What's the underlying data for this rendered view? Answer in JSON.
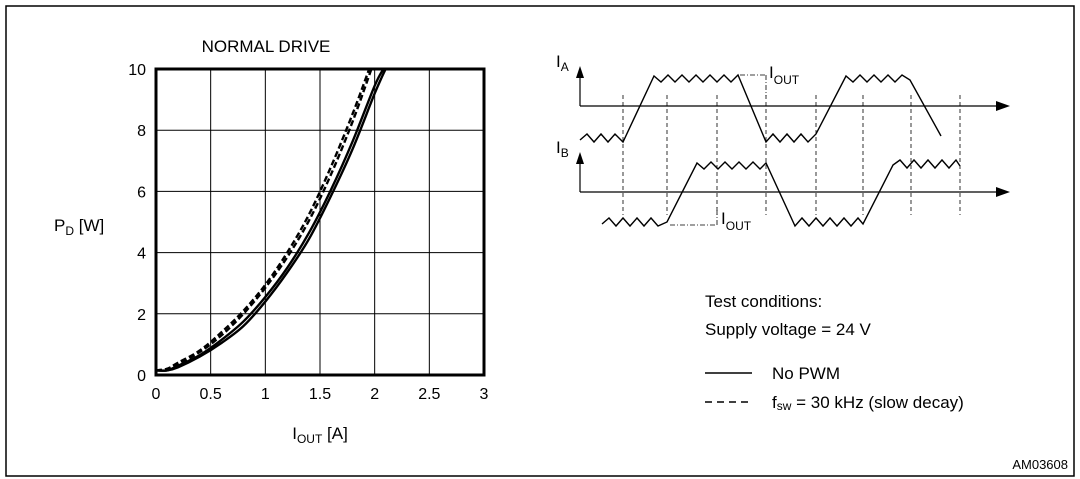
{
  "chart_data": {
    "type": "line",
    "title": "NORMAL DRIVE",
    "xlabel": {
      "main": "I",
      "sub": "OUT",
      "unit": " [A]"
    },
    "ylabel": {
      "main": "P",
      "sub": "D",
      "unit": " [W]"
    },
    "xlim": [
      0,
      3
    ],
    "ylim": [
      0,
      10
    ],
    "x_ticks": [
      "0",
      "0.5",
      "1",
      "1.5",
      "2",
      "2.5",
      "3"
    ],
    "y_ticks": [
      "0",
      "2",
      "4",
      "6",
      "8",
      "10"
    ],
    "grid": true,
    "series": [
      {
        "style": "solid",
        "points": [
          [
            0,
            0.15
          ],
          [
            0.1,
            0.15
          ],
          [
            0.2,
            0.25
          ],
          [
            0.4,
            0.6
          ],
          [
            0.6,
            1.05
          ],
          [
            0.8,
            1.6
          ],
          [
            1.0,
            2.4
          ],
          [
            1.2,
            3.35
          ],
          [
            1.4,
            4.45
          ],
          [
            1.6,
            5.85
          ],
          [
            1.8,
            7.4
          ],
          [
            2.0,
            9.2
          ],
          [
            2.1,
            10
          ]
        ]
      },
      {
        "style": "solid",
        "points": [
          [
            0,
            0.15
          ],
          [
            0.1,
            0.15
          ],
          [
            0.2,
            0.3
          ],
          [
            0.4,
            0.65
          ],
          [
            0.6,
            1.15
          ],
          [
            0.8,
            1.75
          ],
          [
            1.0,
            2.55
          ],
          [
            1.2,
            3.5
          ],
          [
            1.4,
            4.65
          ],
          [
            1.6,
            6.05
          ],
          [
            1.8,
            7.65
          ],
          [
            2.0,
            9.45
          ],
          [
            2.08,
            10
          ]
        ]
      },
      {
        "style": "dashed",
        "points": [
          [
            0,
            0.15
          ],
          [
            0.1,
            0.2
          ],
          [
            0.2,
            0.35
          ],
          [
            0.4,
            0.75
          ],
          [
            0.6,
            1.3
          ],
          [
            0.8,
            2.0
          ],
          [
            1.0,
            2.85
          ],
          [
            1.2,
            3.85
          ],
          [
            1.4,
            5.05
          ],
          [
            1.6,
            6.55
          ],
          [
            1.8,
            8.3
          ],
          [
            1.97,
            10
          ]
        ]
      },
      {
        "style": "dashed",
        "points": [
          [
            0,
            0.15
          ],
          [
            0.1,
            0.2
          ],
          [
            0.2,
            0.4
          ],
          [
            0.4,
            0.8
          ],
          [
            0.6,
            1.4
          ],
          [
            0.8,
            2.1
          ],
          [
            1.0,
            2.95
          ],
          [
            1.2,
            4.0
          ],
          [
            1.4,
            5.25
          ],
          [
            1.6,
            6.8
          ],
          [
            1.8,
            8.55
          ],
          [
            1.95,
            10
          ]
        ]
      }
    ]
  },
  "waveform": {
    "ia_label": {
      "main": "I",
      "sub": "A"
    },
    "ib_label": {
      "main": "I",
      "sub": "B"
    },
    "iout_label": {
      "main": "I",
      "sub": "OUT"
    }
  },
  "conditions": {
    "heading": "Test conditions:",
    "supply": "Supply voltage = 24 V",
    "legend_solid": "No PWM",
    "legend_dashed_main": "f",
    "legend_dashed_sub": "sw",
    "legend_dashed_rest": " = 30 kHz (slow decay)"
  },
  "figure_id": "AM03608"
}
